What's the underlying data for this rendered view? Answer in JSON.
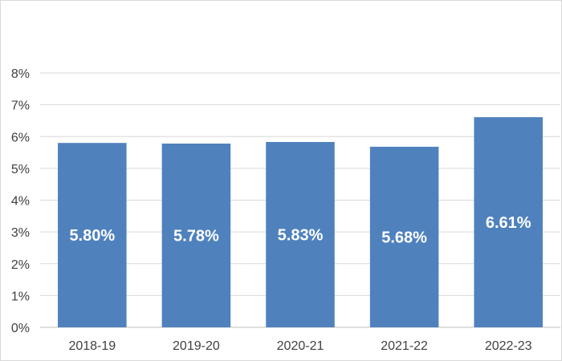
{
  "chart_data": {
    "type": "bar",
    "title": "",
    "xlabel": "",
    "ylabel": "",
    "categories": [
      "2018-19",
      "2019-20",
      "2020-21",
      "2021-22",
      "2022-23"
    ],
    "values": [
      5.8,
      5.78,
      5.83,
      5.68,
      6.61
    ],
    "data_labels": [
      "5.80%",
      "5.78%",
      "5.83%",
      "5.68%",
      "6.61%"
    ],
    "ylim": [
      0,
      8
    ],
    "y_ticks": [
      0,
      1,
      2,
      3,
      4,
      5,
      6,
      7,
      8
    ],
    "y_tick_labels": [
      "0%",
      "1%",
      "2%",
      "3%",
      "4%",
      "5%",
      "6%",
      "7%",
      "8%"
    ],
    "grid": true,
    "legend": "none",
    "bar_color": "#4f81bd"
  }
}
